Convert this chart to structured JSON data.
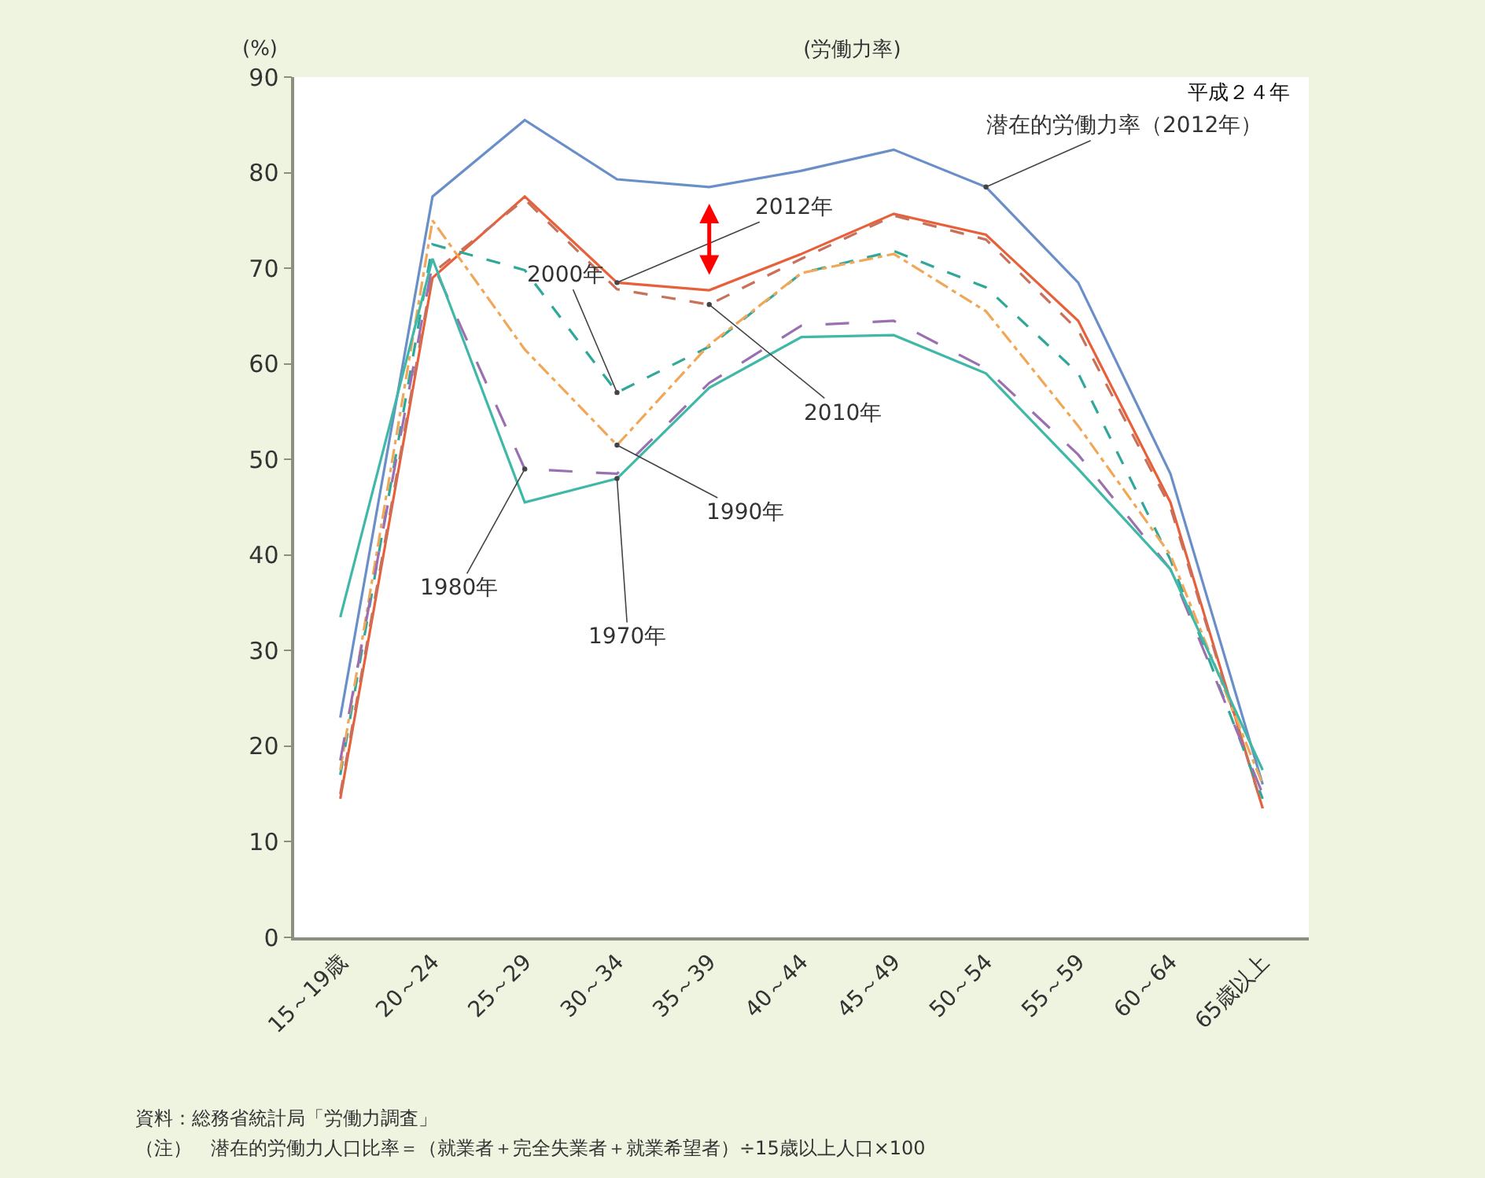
{
  "chart_data": {
    "type": "line",
    "title": "(労働力率)",
    "ylabel": "(%)",
    "categories": [
      "15～19歳",
      "20～24",
      "25～29",
      "30～34",
      "35～39",
      "40～44",
      "45～49",
      "50～54",
      "55～59",
      "60～64",
      "65歳以上"
    ],
    "series": [
      {
        "color": "#6a8fc8",
        "line_style": "solid",
        "values": [
          23,
          77.5,
          85.5,
          79.3,
          78.5,
          80.2,
          82.4,
          78.5,
          68.5,
          48.5,
          16
        ]
      },
      {
        "color": "#e8603a",
        "line_style": "solid",
        "values": [
          14.5,
          69,
          77.5,
          68.5,
          67.7,
          71.5,
          75.7,
          73.5,
          64.5,
          45.5,
          13.5
        ]
      },
      {
        "color": "#c8705a",
        "line_style": "dashed",
        "values": [
          15,
          69.5,
          77.2,
          67.8,
          66.2,
          71,
          75.5,
          73,
          63.5,
          45,
          13.5
        ]
      },
      {
        "color": "#2fa89a",
        "line_style": "dashed",
        "values": [
          17,
          72.5,
          69.8,
          57,
          61.8,
          69.5,
          71.8,
          68,
          59,
          39.5,
          14.5
        ]
      },
      {
        "color": "#f0a858",
        "line_style": "dashdot",
        "values": [
          17.5,
          75,
          61.5,
          51.5,
          62,
          69.5,
          71.5,
          65.5,
          53.5,
          40,
          16
        ]
      },
      {
        "color": "#9a70b0",
        "line_style": "longdash",
        "values": [
          18.5,
          70.5,
          49,
          48.5,
          58,
          64,
          64.5,
          59.5,
          50.5,
          38.5,
          15
        ]
      },
      {
        "color": "#3fb8a8",
        "line_style": "solid",
        "values": [
          33.5,
          71,
          45.5,
          48,
          57.5,
          62.8,
          63,
          59,
          49,
          38.5,
          17.5
        ]
      }
    ],
    "ylim": [
      0,
      90
    ],
    "yticks": [
      0,
      10,
      20,
      30,
      40,
      50,
      60,
      70,
      80,
      90
    ],
    "grid": false,
    "marker": "none",
    "annotations": [
      {
        "text": "潜在的労働力率（2012年）",
        "x": "50～54",
        "y": 78.5
      },
      {
        "text": "2012年",
        "x": "30～34",
        "y": 68.5
      },
      {
        "text": "2000年",
        "x": "30～34",
        "y": 57
      },
      {
        "text": "2010年",
        "x": "35～39",
        "y": 66.2
      },
      {
        "text": "1990年",
        "x": "30～34",
        "y": 51.5
      },
      {
        "text": "1980年",
        "x": "25～29",
        "y": 49
      },
      {
        "text": "1970年",
        "x": "30～34",
        "y": 48
      },
      "平成２４年",
      "資料：総務省統計局「労働力調査」",
      "（注）　潜在的労働力人口比率＝（就業者＋完全失業者＋就業希望者）÷15歳以上人口×100"
    ]
  }
}
